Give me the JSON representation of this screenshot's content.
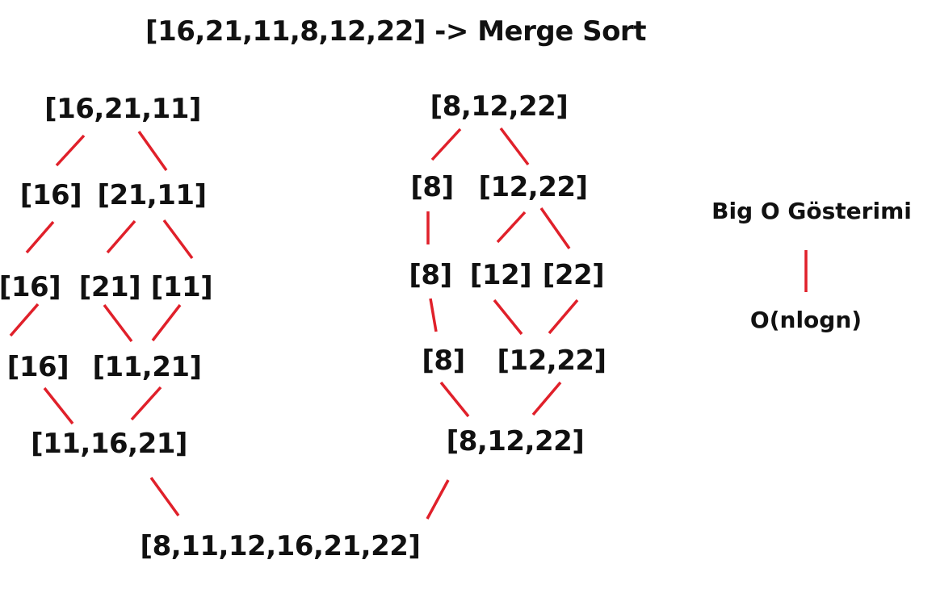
{
  "title": "[16,21,11,8,12,22] -> Merge Sort",
  "nodes": {
    "left_root": "[16,21,11]",
    "l_split_a": "[16]",
    "l_split_b": "[21,11]",
    "l_leaf_16": "[16]",
    "l_leaf_21": "[21]",
    "l_leaf_11": "[11]",
    "l_merge_16": "[16]",
    "l_merge_11_21": "[11,21]",
    "l_sorted": "[11,16,21]",
    "right_root": "[8,12,22]",
    "r_split_a": "[8]",
    "r_split_b": "[12,22]",
    "r_leaf_8": "[8]",
    "r_leaf_12": "[12]",
    "r_leaf_22": "[22]",
    "r_merge_8": "[8]",
    "r_merge_12_22": "[12,22]",
    "r_sorted": "[8,12,22]",
    "final": "[8,11,12,16,21,22]"
  },
  "complexity": {
    "heading": "Big O Gösterimi",
    "value": "O(nlogn)"
  },
  "colors": {
    "edge": "#e0202a",
    "text": "#111111",
    "background": "#ffffff"
  }
}
